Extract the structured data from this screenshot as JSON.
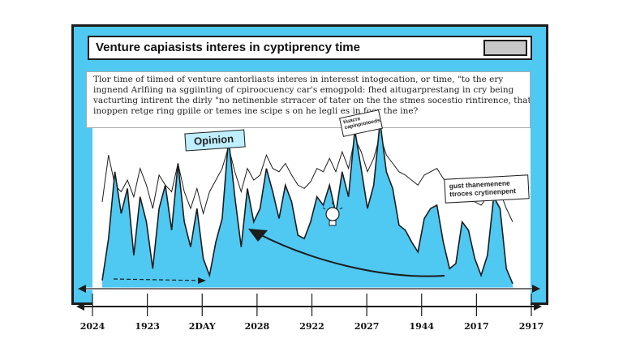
{
  "window": {
    "title": "Venture capiasists interes in cyptiprency time"
  },
  "description": {
    "lines": [
      "Tlor time of tiimed of venture cantorliasts interes in interesst intogecation, or time, \"to the ery",
      "ingnend Arlfiing na sggiinting of cpiroocuency car's emogpold: fhed aitugarprestang in cry being",
      "vacturting intirent the dirly \"no netinenble strracer of tater on the the stmes socestio rintirence, that urf",
      "inoppen retge ring gpiile or temes ine scipe s on he legli  es in foer the ine?"
    ]
  },
  "callouts": {
    "opinion": "Opinion",
    "mid": "tiuacre capinprotoeds",
    "right": "gust thanemenene ttroces crytinenpent"
  },
  "colors": {
    "frame": "#4fc8f2",
    "area_fill": "#4fc8f2",
    "line": "#1c1c1c",
    "axis": "#ffffff"
  },
  "chart_data": {
    "type": "area",
    "title": "Venture capiasists interes in cyptiprency time",
    "xlabel": "",
    "ylabel": "",
    "tick_labels": [
      "2024",
      "1923",
      "2DAY",
      "2028",
      "2922",
      "2027",
      "1944",
      "2017",
      "2917"
    ],
    "ylim": [
      0,
      100
    ],
    "grid": false,
    "legend": "none",
    "series": [
      {
        "values": [
          5,
          30,
          70,
          45,
          60,
          20,
          55,
          40,
          12,
          48,
          62,
          35,
          75,
          40,
          25,
          48,
          18,
          8,
          28,
          42,
          90,
          55,
          25,
          60,
          40,
          48,
          72,
          58,
          42,
          62,
          52,
          32,
          30,
          40,
          55,
          50,
          62,
          45,
          70,
          55,
          95,
          72,
          48,
          62,
          100,
          70,
          60,
          38,
          35,
          28,
          22,
          42,
          48,
          50,
          28,
          12,
          15,
          40,
          35,
          18,
          8,
          20,
          55,
          48,
          12,
          3
        ]
      },
      {
        "values": [
          52,
          80,
          62,
          58,
          65,
          55,
          72,
          62,
          48,
          68,
          62,
          58,
          75,
          58,
          48,
          60,
          45,
          58,
          65,
          72,
          85,
          70,
          58,
          72,
          65,
          68,
          80,
          72,
          70,
          75,
          68,
          62,
          60,
          64,
          72,
          70,
          78,
          70,
          82,
          72,
          90,
          82,
          70,
          78,
          92,
          80,
          75,
          70,
          68,
          65,
          62,
          68,
          70,
          72,
          66,
          60,
          58,
          62,
          58,
          52,
          50,
          55,
          62,
          58,
          48,
          40
        ]
      }
    ]
  }
}
